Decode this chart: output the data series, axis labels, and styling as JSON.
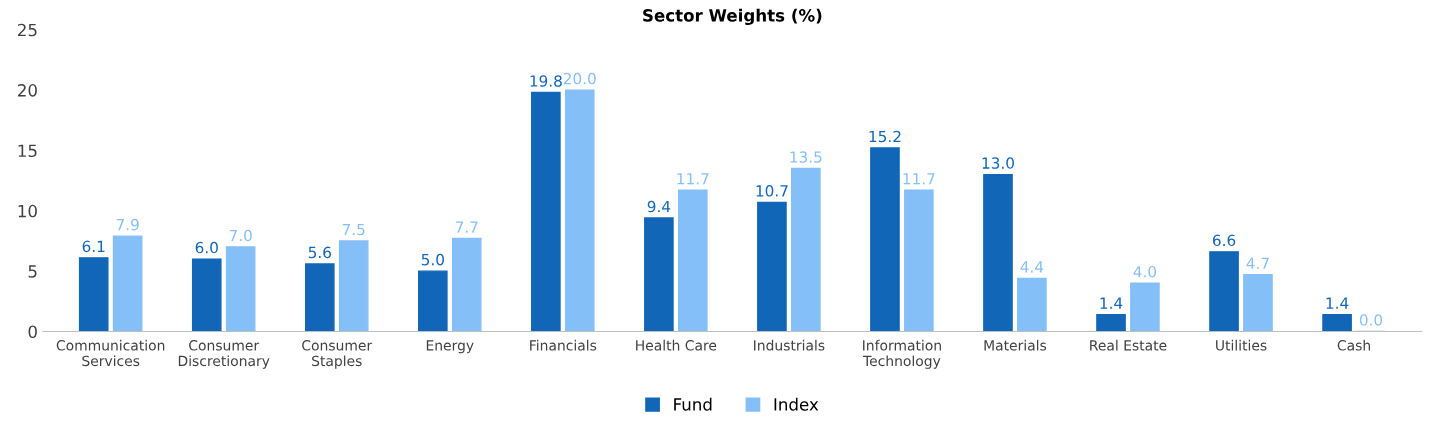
{
  "chart_data": {
    "type": "bar",
    "title": "Sector Weights (%)",
    "categories": [
      "Communication\nServices",
      "Consumer\nDiscretionary",
      "Consumer\nStaples",
      "Energy",
      "Financials",
      "Health Care",
      "Industrials",
      "Information\nTechnology",
      "Materials",
      "Real Estate",
      "Utilities",
      "Cash"
    ],
    "series": [
      {
        "name": "Fund",
        "color": "#1166b8",
        "values": [
          6.1,
          6.0,
          5.6,
          5.0,
          19.8,
          9.4,
          10.7,
          15.2,
          13.0,
          1.4,
          6.6,
          1.4
        ],
        "value_labels": [
          "6.1",
          "6.0",
          "5.6",
          "5.0",
          "19.8",
          "9.4",
          "10.7",
          "15.2",
          "13.0",
          "1.4",
          "6.6",
          "1.4"
        ]
      },
      {
        "name": "Index",
        "color": "#85bff7",
        "values": [
          7.9,
          7.0,
          7.5,
          7.7,
          20.0,
          11.7,
          13.5,
          11.7,
          4.4,
          4.0,
          4.7,
          0.0
        ],
        "value_labels": [
          "7.9",
          "7.0",
          "7.5",
          "7.7",
          "20.0",
          "11.7",
          "13.5",
          "11.7",
          "4.4",
          "4.0",
          "4.7",
          "0.0"
        ]
      }
    ],
    "ylim": [
      0,
      25
    ],
    "yticks": [
      0,
      5,
      10,
      15,
      20,
      25
    ],
    "grid": false,
    "legend": "bottom"
  }
}
